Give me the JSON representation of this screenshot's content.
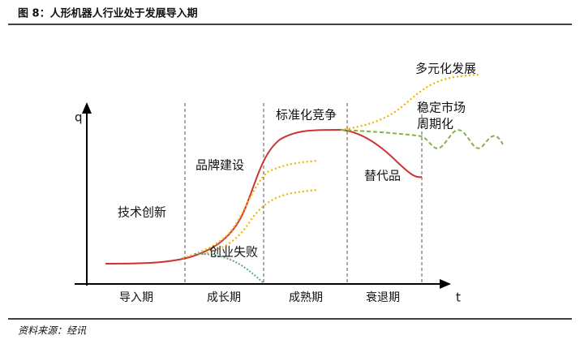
{
  "header": {
    "title": "图 8：人形机器人行业处于发展导入期"
  },
  "axes": {
    "y": "q",
    "x": "t"
  },
  "phases": [
    "导入期",
    "成长期",
    "成熟期",
    "衰退期"
  ],
  "annotations": {
    "innovation": "技术创新",
    "branding": "品牌建设",
    "failure": "创业失败",
    "standard": "标准化竞争",
    "substitute": "替代品",
    "diversify": "多元化发展",
    "stable": [
      "稳定市场",
      "周期化"
    ]
  },
  "footer": {
    "source": "资料来源：经讯"
  }
}
